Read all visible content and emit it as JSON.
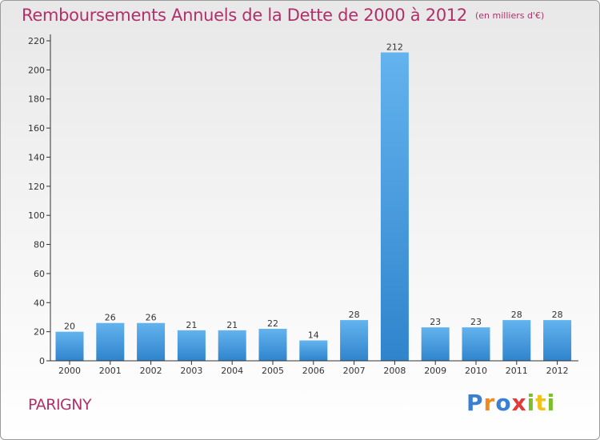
{
  "chart_data": {
    "type": "bar",
    "title": "Remboursements Annuels de la Dette de 2000 à 2012",
    "unit_label": "(en milliers d'€)",
    "categories": [
      "2000",
      "2001",
      "2002",
      "2003",
      "2004",
      "2005",
      "2006",
      "2007",
      "2008",
      "2009",
      "2010",
      "2011",
      "2012"
    ],
    "values": [
      20,
      26,
      26,
      21,
      21,
      22,
      14,
      28,
      212,
      23,
      23,
      28,
      28
    ],
    "ylim": [
      0,
      220
    ],
    "yticks": [
      0,
      20,
      40,
      60,
      80,
      100,
      120,
      140,
      160,
      180,
      200,
      220
    ],
    "grid": false,
    "bar_color": "#4a9fe0",
    "axis_color": "#333333"
  },
  "commune": "PARIGNY",
  "brand": {
    "letters": [
      "P",
      "r",
      "o",
      "x",
      "i",
      "t",
      "i"
    ],
    "colors": [
      "#3b7fd0",
      "#f08a1c",
      "#3b7fd0",
      "#e03a3a",
      "#7bbf2a",
      "#f2c21a",
      "#7bbf2a"
    ]
  }
}
